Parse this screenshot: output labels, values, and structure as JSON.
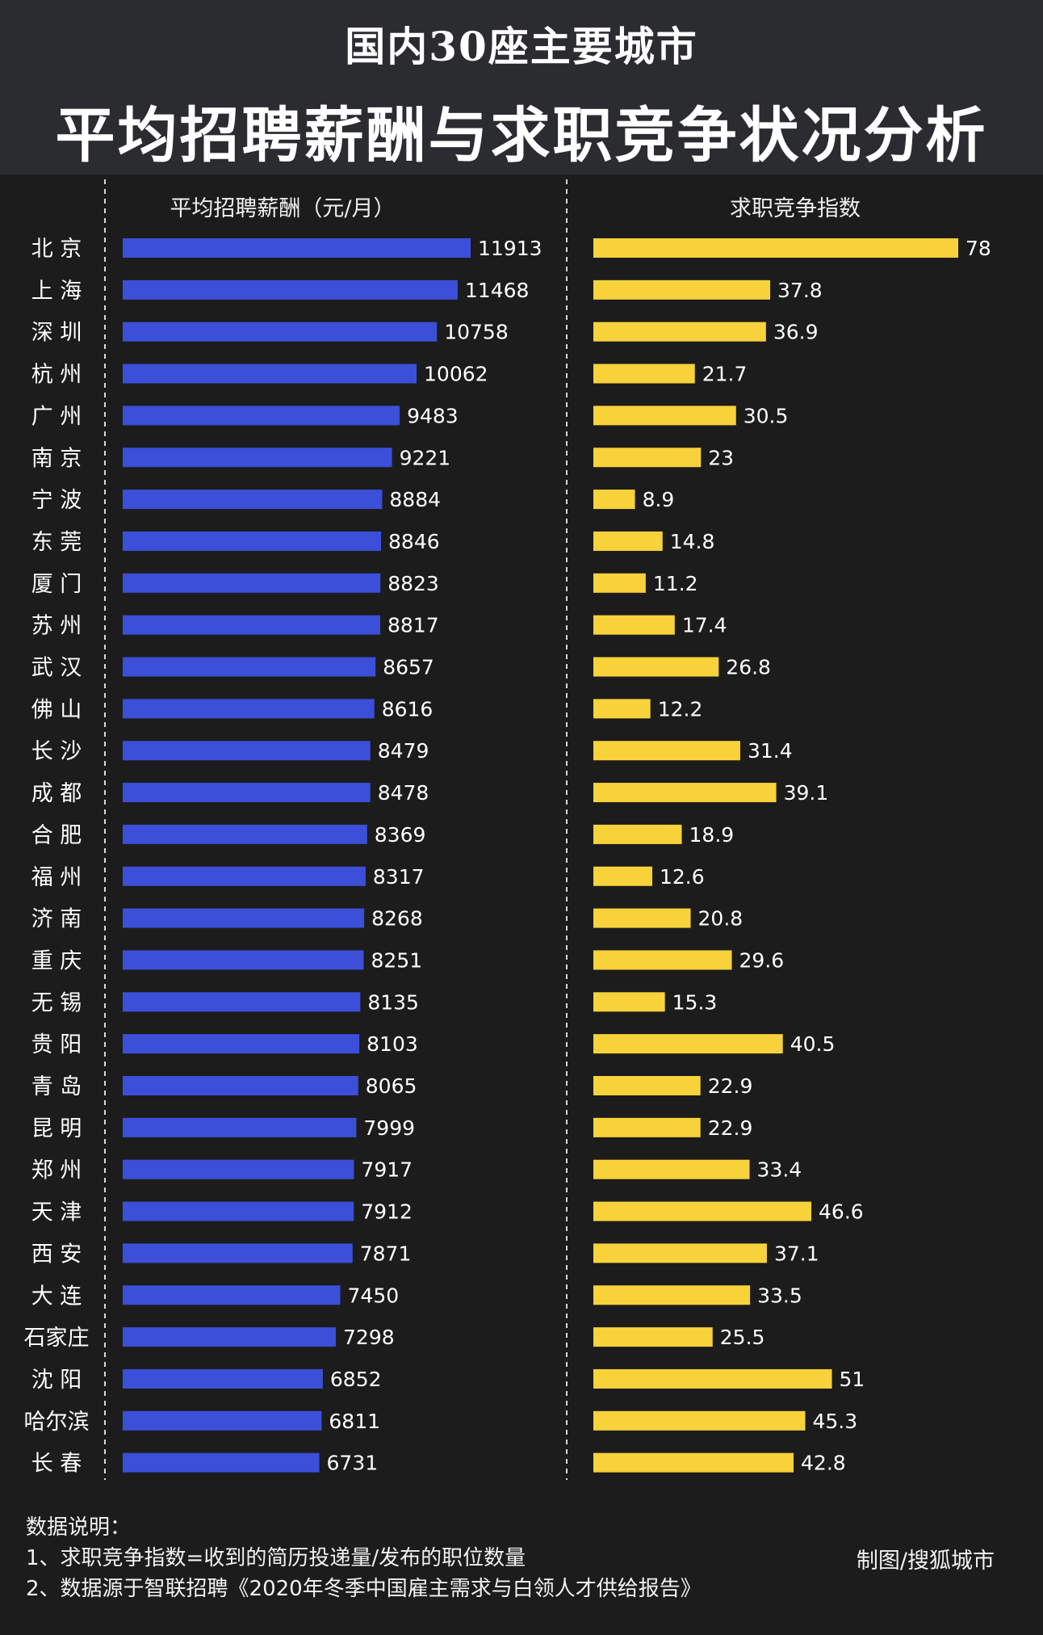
{
  "header": {
    "title_line1": "国内30座主要城市",
    "title_line2": "平均招聘薪酬与求职竞争状况分析"
  },
  "colors": {
    "salary_bar": "#3b4fd8",
    "competition_bar": "#f8d23a",
    "background": "#1c1c1c",
    "header_bg": "#2a2c30"
  },
  "chart_data": {
    "type": "bar",
    "orientation": "horizontal",
    "categories": [
      "北京",
      "上海",
      "深圳",
      "杭州",
      "广州",
      "南京",
      "宁波",
      "东莞",
      "厦门",
      "苏州",
      "武汉",
      "佛山",
      "长沙",
      "成都",
      "合肥",
      "福州",
      "济南",
      "重庆",
      "无锡",
      "贵阳",
      "青岛",
      "昆明",
      "郑州",
      "天津",
      "西安",
      "大连",
      "石家庄",
      "沈阳",
      "哈尔滨",
      "长春"
    ],
    "series": [
      {
        "name": "平均招聘薪酬（元/月）",
        "values": [
          11913,
          11468,
          10758,
          10062,
          9483,
          9221,
          8884,
          8846,
          8823,
          8817,
          8657,
          8616,
          8479,
          8478,
          8369,
          8317,
          8268,
          8251,
          8135,
          8103,
          8065,
          7999,
          7917,
          7912,
          7871,
          7450,
          7298,
          6852,
          6811,
          6731
        ]
      },
      {
        "name": "求职竞争指数",
        "values": [
          78,
          37.8,
          36.9,
          21.7,
          30.5,
          23,
          8.9,
          14.8,
          11.2,
          17.4,
          26.8,
          12.2,
          31.4,
          39.1,
          18.9,
          12.6,
          20.8,
          29.6,
          15.3,
          40.5,
          22.9,
          22.9,
          33.4,
          46.6,
          37.1,
          33.5,
          25.5,
          51,
          45.3,
          42.8
        ]
      }
    ],
    "display_labels": {
      "categories": [
        "北 京",
        "上 海",
        "深 圳",
        "杭 州",
        "广 州",
        "南 京",
        "宁 波",
        "东 莞",
        "厦 门",
        "苏 州",
        "武 汉",
        "佛 山",
        "长 沙",
        "成 都",
        "合 肥",
        "福 州",
        "济 南",
        "重 庆",
        "无 锡",
        "贵 阳",
        "青 岛",
        "昆 明",
        "郑 州",
        "天 津",
        "西 安",
        "大 连",
        "石家庄",
        "沈 阳",
        "哈尔滨",
        "长 春"
      ],
      "salary": [
        "11913",
        "11468",
        "10758",
        "10062",
        "9483",
        "9221",
        "8884",
        "8846",
        "8823",
        "8817",
        "8657",
        "8616",
        "8479",
        "8478",
        "8369",
        "8317",
        "8268",
        "8251",
        "8135",
        "8103",
        "8065",
        "7999",
        "7917",
        "7912",
        "7871",
        "7450",
        "7298",
        "6852",
        "6811",
        "6731"
      ],
      "competition": [
        "78",
        "37.8",
        "36.9",
        "21.7",
        "30.5",
        "23",
        "8.9",
        "14.8",
        "11.2",
        "17.4",
        "26.8",
        "12.2",
        "31.4",
        "39.1",
        "18.9",
        "12.6",
        "20.8",
        "29.6",
        "15.3",
        "40.5",
        "22.9",
        "22.9",
        "33.4",
        "46.6",
        "37.1",
        "33.5",
        "25.5",
        "51",
        "45.3",
        "42.8"
      ]
    },
    "grid": false,
    "legend": "none"
  },
  "notes": {
    "heading": "数据说明：",
    "line1": "1、求职竞争指数=收到的简历投递量/发布的职位数量",
    "line2": "2、数据源于智联招聘《2020年冬季中国雇主需求与白领人才供给报告》"
  },
  "credit": "制图/搜狐城市"
}
